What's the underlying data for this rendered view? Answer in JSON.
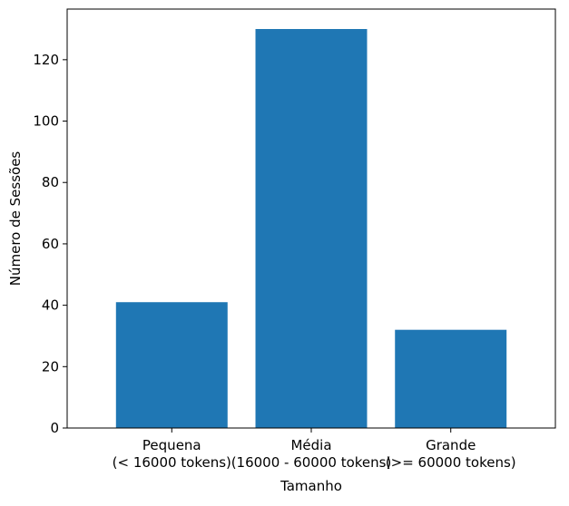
{
  "chart_data": {
    "type": "bar",
    "categories": [
      [
        "Pequena",
        "(< 16000 tokens)"
      ],
      [
        "Média",
        "(16000 - 60000 tokens)"
      ],
      [
        "Grande",
        "(>= 60000 tokens)"
      ]
    ],
    "values": [
      41,
      130,
      32
    ],
    "title": "",
    "xlabel": "Tamanho",
    "ylabel": "Número de Sessões",
    "ylim": [
      0,
      136.5
    ],
    "yticks": [
      0,
      20,
      40,
      60,
      80,
      100,
      120
    ],
    "bar_color": "#1f77b4",
    "grid": false
  }
}
